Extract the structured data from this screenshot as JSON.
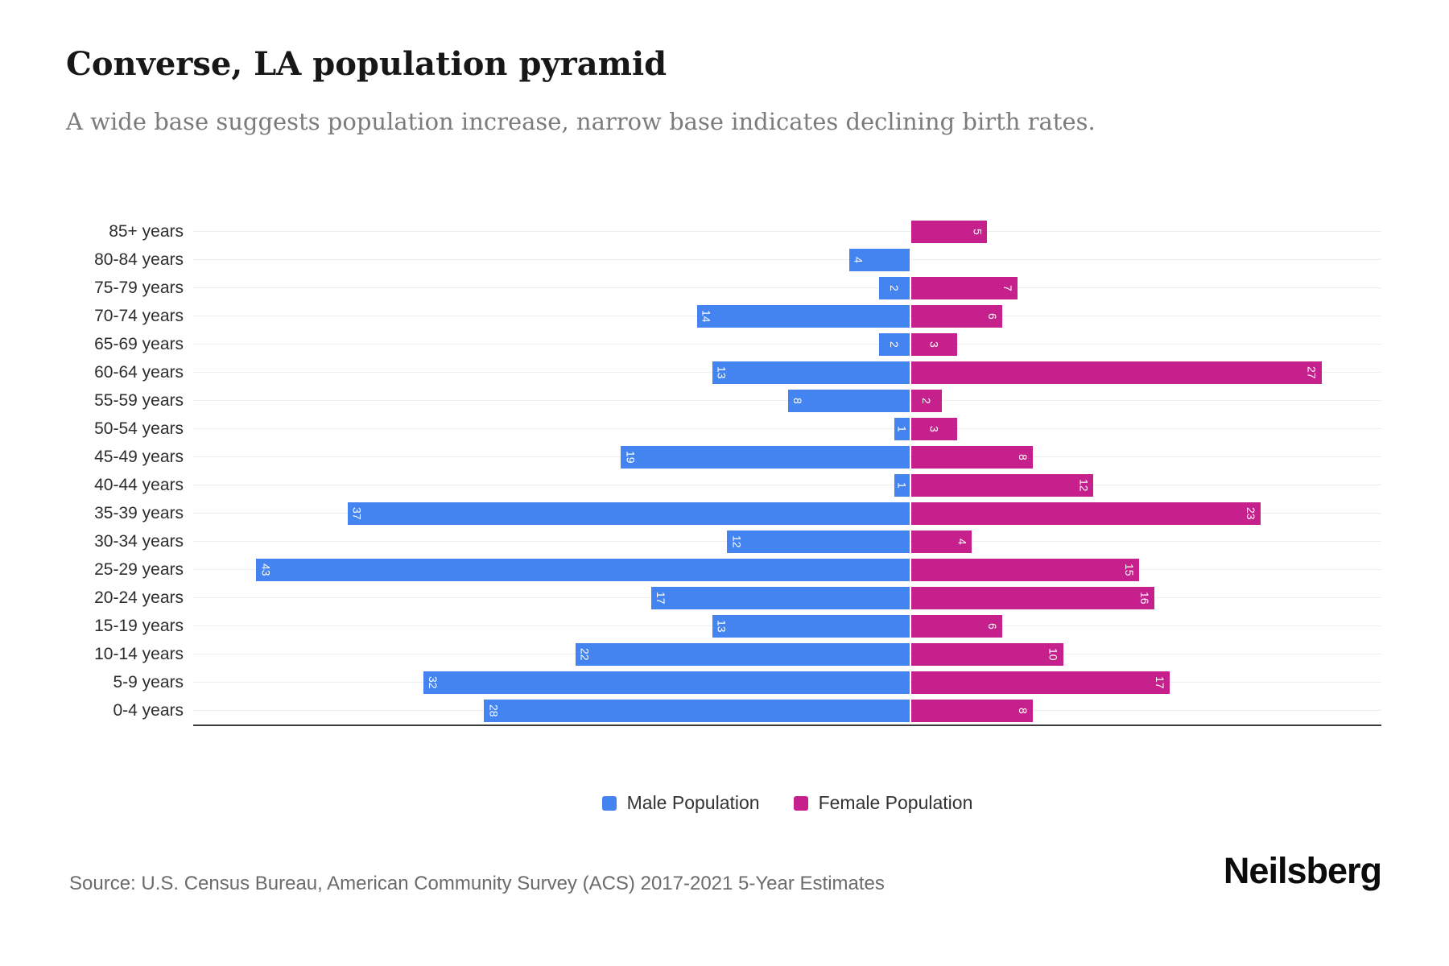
{
  "title": "Converse, LA population pyramid",
  "subtitle": "A wide base suggests population increase, narrow base indicates declining birth rates.",
  "source": "Source: U.S. Census Bureau, American Community Survey (ACS) 2017-2021 5-Year Estimates",
  "brand": "Neilsberg",
  "colors": {
    "male": "#4484F0",
    "female": "#C5208C",
    "bar_value_label": "#ffffff",
    "gridline": "#ededed",
    "axis_line": "#3b3b3b"
  },
  "legend": [
    {
      "label": "Male Population",
      "color": "#4484F0"
    },
    {
      "label": "Female Population",
      "color": "#C5208C"
    }
  ],
  "chart_data": {
    "type": "bar",
    "subtype": "population-pyramid",
    "orientation": "horizontal-diverging",
    "title": "Converse, LA population pyramid",
    "categories": [
      "85+ years",
      "80-84 years",
      "75-79 years",
      "70-74 years",
      "65-69 years",
      "60-64 years",
      "55-59 years",
      "50-54 years",
      "45-49 years",
      "40-44 years",
      "35-39 years",
      "30-34 years",
      "25-29 years",
      "20-24 years",
      "15-19 years",
      "10-14 years",
      "5-9 years",
      "0-4 years"
    ],
    "series": [
      {
        "name": "Male Population",
        "side": "left",
        "color": "#4484F0",
        "values": [
          0,
          4,
          2,
          14,
          2,
          13,
          8,
          1,
          19,
          1,
          37,
          12,
          43,
          17,
          13,
          22,
          32,
          28
        ]
      },
      {
        "name": "Female Population",
        "side": "right",
        "color": "#C5208C",
        "values": [
          5,
          0,
          7,
          6,
          3,
          27,
          2,
          3,
          8,
          12,
          23,
          4,
          15,
          16,
          6,
          10,
          17,
          8
        ]
      }
    ],
    "value_labels": "inside-bar-ends, rotated 90deg, white",
    "x_axis": {
      "ticks_visible": false,
      "left_axis_max": 47.2,
      "right_axis_max": 31.0
    },
    "grid": "horizontal line per category, light gray",
    "legend_position": "bottom-center"
  }
}
